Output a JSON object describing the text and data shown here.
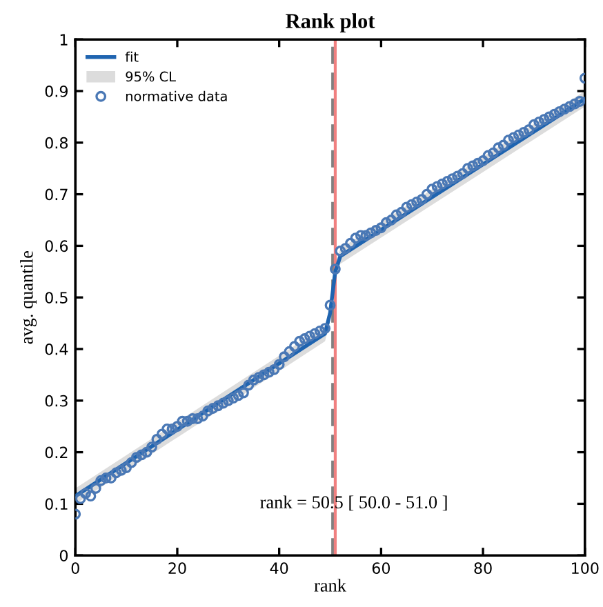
{
  "chart_data": {
    "type": "scatter",
    "title": "Rank plot",
    "xlabel": "rank",
    "ylabel": "avg. quantile",
    "xlim": [
      0,
      100
    ],
    "xticks": [
      0,
      20,
      40,
      60,
      80,
      100
    ],
    "ylim": [
      0,
      1
    ],
    "yticks": [
      0,
      0.1,
      0.2,
      0.3,
      0.4,
      0.5,
      0.6,
      0.7,
      0.8,
      0.9,
      1
    ],
    "grid": false,
    "legend": "top left",
    "series": [
      {
        "name": "fit",
        "type": "line",
        "color": "#1f64b0",
        "marker": "none",
        "x": [
          0,
          49,
          50,
          51,
          52,
          100
        ],
        "values": [
          0.115,
          0.43,
          0.47,
          0.55,
          0.58,
          0.885
        ],
        "lower": [
          0.1,
          0.415,
          0.455,
          0.535,
          0.565,
          0.87
        ],
        "upper": [
          0.13,
          0.445,
          0.485,
          0.565,
          0.595,
          0.9
        ]
      },
      {
        "name": "95% CL",
        "type": "area",
        "color": "#dcdcdc"
      },
      {
        "name": "normative data",
        "color": "#4a78b5",
        "marker": "circle",
        "x": [
          0,
          1,
          2,
          3,
          4,
          5,
          6,
          7,
          8,
          9,
          10,
          11,
          12,
          13,
          14,
          15,
          16,
          17,
          18,
          19,
          20,
          21,
          22,
          23,
          24,
          25,
          26,
          27,
          28,
          29,
          30,
          31,
          32,
          33,
          34,
          35,
          36,
          37,
          38,
          39,
          40,
          41,
          42,
          43,
          44,
          45,
          46,
          47,
          48,
          49,
          50,
          51,
          52,
          53,
          54,
          55,
          56,
          57,
          58,
          59,
          60,
          61,
          62,
          63,
          64,
          65,
          66,
          67,
          68,
          69,
          70,
          71,
          72,
          73,
          74,
          75,
          76,
          77,
          78,
          79,
          80,
          81,
          82,
          83,
          84,
          85,
          86,
          87,
          88,
          89,
          90,
          91,
          92,
          93,
          94,
          95,
          96,
          97,
          98,
          99,
          100
        ],
        "values": [
          0.08,
          0.11,
          0.12,
          0.115,
          0.13,
          0.145,
          0.15,
          0.15,
          0.16,
          0.165,
          0.17,
          0.18,
          0.19,
          0.195,
          0.2,
          0.21,
          0.225,
          0.235,
          0.245,
          0.245,
          0.25,
          0.26,
          0.26,
          0.265,
          0.265,
          0.27,
          0.28,
          0.285,
          0.29,
          0.295,
          0.3,
          0.305,
          0.31,
          0.315,
          0.33,
          0.34,
          0.345,
          0.35,
          0.355,
          0.36,
          0.37,
          0.385,
          0.395,
          0.405,
          0.415,
          0.42,
          0.425,
          0.43,
          0.435,
          0.44,
          0.485,
          0.555,
          0.59,
          0.595,
          0.605,
          0.615,
          0.62,
          0.62,
          0.625,
          0.63,
          0.635,
          0.645,
          0.65,
          0.66,
          0.665,
          0.675,
          0.68,
          0.685,
          0.69,
          0.7,
          0.71,
          0.715,
          0.72,
          0.725,
          0.73,
          0.735,
          0.74,
          0.75,
          0.755,
          0.76,
          0.765,
          0.775,
          0.78,
          0.79,
          0.795,
          0.805,
          0.81,
          0.815,
          0.82,
          0.825,
          0.835,
          0.84,
          0.845,
          0.85,
          0.855,
          0.86,
          0.865,
          0.87,
          0.875,
          0.88,
          0.925
        ]
      }
    ],
    "ref_lines": [
      {
        "axis": "x",
        "value": 50.5,
        "color": "#808080",
        "line_style": "dashed"
      },
      {
        "axis": "x",
        "value": 51.0,
        "color": "#f08080",
        "line_style": "solid"
      }
    ],
    "annotations": [
      {
        "text": "rank = 50.5 [ 50.0 - 51.0 ]",
        "x": 50.5,
        "y": 0.1
      }
    ]
  }
}
